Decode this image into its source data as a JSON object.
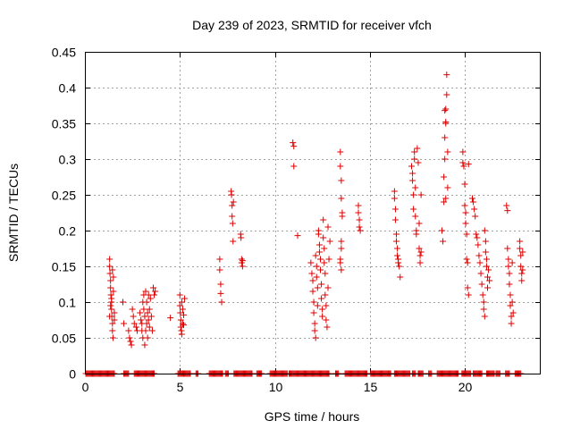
{
  "chart_data": {
    "type": "scatter",
    "title": "Day 239 of 2023, SRMTID for receiver vfch",
    "xlabel": "GPS time / hours",
    "ylabel": "SRMTID / TECUs",
    "xlim": [
      0,
      24
    ],
    "ylim": [
      0,
      0.45
    ],
    "xticks": [
      0,
      5,
      10,
      15,
      20
    ],
    "yticks": [
      0,
      0.05,
      0.1,
      0.15,
      0.2,
      0.25,
      0.3,
      0.35,
      0.4,
      0.45
    ],
    "xtick_labels": [
      "0",
      "5",
      "10",
      "15",
      "20"
    ],
    "ytick_labels": [
      "0",
      "0.05",
      "0.1",
      "0.15",
      "0.2",
      "0.25",
      "0.3",
      "0.35",
      "0.4",
      "0.45"
    ],
    "grid": true,
    "marker": "+",
    "color": "#dd0000",
    "series": [
      {
        "name": "SRMTID",
        "points": [
          [
            1.3,
            0.16
          ],
          [
            1.3,
            0.15
          ],
          [
            1.32,
            0.14
          ],
          [
            1.35,
            0.13
          ],
          [
            1.35,
            0.12
          ],
          [
            1.37,
            0.11
          ],
          [
            1.4,
            0.1
          ],
          [
            1.4,
            0.09
          ],
          [
            1.42,
            0.08
          ],
          [
            1.45,
            0.07
          ],
          [
            1.45,
            0.06
          ],
          [
            1.48,
            0.05
          ],
          [
            1.3,
            0.08
          ],
          [
            1.35,
            0.095
          ],
          [
            1.4,
            0.105
          ],
          [
            1.45,
            0.145
          ],
          [
            1.5,
            0.135
          ],
          [
            1.5,
            0.115
          ],
          [
            1.55,
            0.085
          ],
          [
            1.55,
            0.075
          ],
          [
            2.0,
            0.1
          ],
          [
            2.05,
            0.07
          ],
          [
            2.3,
            0.06
          ],
          [
            2.35,
            0.05
          ],
          [
            2.4,
            0.045
          ],
          [
            2.45,
            0.04
          ],
          [
            2.5,
            0.09
          ],
          [
            2.55,
            0.08
          ],
          [
            2.6,
            0.07
          ],
          [
            2.7,
            0.065
          ],
          [
            2.75,
            0.06
          ],
          [
            2.9,
            0.085
          ],
          [
            2.95,
            0.075
          ],
          [
            3.0,
            0.07
          ],
          [
            3.0,
            0.06
          ],
          [
            3.05,
            0.05
          ],
          [
            3.05,
            0.1
          ],
          [
            3.1,
            0.09
          ],
          [
            3.1,
            0.11
          ],
          [
            3.15,
            0.08
          ],
          [
            3.15,
            0.04
          ],
          [
            3.2,
            0.115
          ],
          [
            3.2,
            0.06
          ],
          [
            3.25,
            0.07
          ],
          [
            3.25,
            0.1
          ],
          [
            3.3,
            0.085
          ],
          [
            3.3,
            0.05
          ],
          [
            3.35,
            0.11
          ],
          [
            3.35,
            0.075
          ],
          [
            3.4,
            0.09
          ],
          [
            3.4,
            0.065
          ],
          [
            3.45,
            0.105
          ],
          [
            3.5,
            0.08
          ],
          [
            3.55,
            0.06
          ],
          [
            3.6,
            0.12
          ],
          [
            3.65,
            0.11
          ],
          [
            3.7,
            0.115
          ],
          [
            4.5,
            0.078
          ],
          [
            5.0,
            0.11
          ],
          [
            5.0,
            0.095
          ],
          [
            5.02,
            0.085
          ],
          [
            5.05,
            0.075
          ],
          [
            5.05,
            0.065
          ],
          [
            5.08,
            0.06
          ],
          [
            5.1,
            0.055
          ],
          [
            5.1,
            0.1
          ],
          [
            5.15,
            0.09
          ],
          [
            5.15,
            0.07
          ],
          [
            5.2,
            0.082
          ],
          [
            5.2,
            0.068
          ],
          [
            5.25,
            0.105
          ],
          [
            7.1,
            0.16
          ],
          [
            7.1,
            0.145
          ],
          [
            7.15,
            0.125
          ],
          [
            7.15,
            0.112
          ],
          [
            7.2,
            0.1
          ],
          [
            7.7,
            0.255
          ],
          [
            7.72,
            0.25
          ],
          [
            7.75,
            0.235
          ],
          [
            7.75,
            0.22
          ],
          [
            7.78,
            0.21
          ],
          [
            7.8,
            0.185
          ],
          [
            7.82,
            0.24
          ],
          [
            8.2,
            0.195
          ],
          [
            8.22,
            0.19
          ],
          [
            8.25,
            0.16
          ],
          [
            8.25,
            0.155
          ],
          [
            8.3,
            0.15
          ],
          [
            8.3,
            0.158
          ],
          [
            10.95,
            0.323
          ],
          [
            11.0,
            0.318
          ],
          [
            11.0,
            0.29
          ],
          [
            11.2,
            0.193
          ],
          [
            11.9,
            0.155
          ],
          [
            11.95,
            0.14
          ],
          [
            12.0,
            0.13
          ],
          [
            12.0,
            0.115
          ],
          [
            12.05,
            0.1
          ],
          [
            12.05,
            0.085
          ],
          [
            12.1,
            0.07
          ],
          [
            12.1,
            0.06
          ],
          [
            12.15,
            0.05
          ],
          [
            12.15,
            0.165
          ],
          [
            12.2,
            0.15
          ],
          [
            12.2,
            0.135
          ],
          [
            12.25,
            0.12
          ],
          [
            12.25,
            0.095
          ],
          [
            12.3,
            0.2
          ],
          [
            12.3,
            0.195
          ],
          [
            12.35,
            0.18
          ],
          [
            12.35,
            0.17
          ],
          [
            12.4,
            0.16
          ],
          [
            12.4,
            0.145
          ],
          [
            12.45,
            0.125
          ],
          [
            12.45,
            0.105
          ],
          [
            12.5,
            0.09
          ],
          [
            12.5,
            0.08
          ],
          [
            12.55,
            0.215
          ],
          [
            12.55,
            0.19
          ],
          [
            12.6,
            0.175
          ],
          [
            12.6,
            0.155
          ],
          [
            12.65,
            0.14
          ],
          [
            12.65,
            0.11
          ],
          [
            12.7,
            0.095
          ],
          [
            12.7,
            0.075
          ],
          [
            12.75,
            0.065
          ],
          [
            12.8,
            0.205
          ],
          [
            12.8,
            0.12
          ],
          [
            12.85,
            0.16
          ],
          [
            12.9,
            0.185
          ],
          [
            13.45,
            0.31
          ],
          [
            13.45,
            0.29
          ],
          [
            13.5,
            0.27
          ],
          [
            13.5,
            0.245
          ],
          [
            13.55,
            0.225
          ],
          [
            13.55,
            0.22
          ],
          [
            13.5,
            0.185
          ],
          [
            13.5,
            0.175
          ],
          [
            13.45,
            0.16
          ],
          [
            13.45,
            0.155
          ],
          [
            13.5,
            0.145
          ],
          [
            14.4,
            0.235
          ],
          [
            14.4,
            0.225
          ],
          [
            14.45,
            0.215
          ],
          [
            14.45,
            0.205
          ],
          [
            14.5,
            0.2
          ],
          [
            16.3,
            0.255
          ],
          [
            16.3,
            0.245
          ],
          [
            16.35,
            0.23
          ],
          [
            16.35,
            0.215
          ],
          [
            16.4,
            0.195
          ],
          [
            16.4,
            0.185
          ],
          [
            16.45,
            0.175
          ],
          [
            16.45,
            0.165
          ],
          [
            16.5,
            0.16
          ],
          [
            16.5,
            0.155
          ],
          [
            16.55,
            0.15
          ],
          [
            16.6,
            0.135
          ],
          [
            17.2,
            0.29
          ],
          [
            17.25,
            0.28
          ],
          [
            17.25,
            0.27
          ],
          [
            17.3,
            0.25
          ],
          [
            17.3,
            0.23
          ],
          [
            17.35,
            0.31
          ],
          [
            17.35,
            0.3
          ],
          [
            17.4,
            0.26
          ],
          [
            17.4,
            0.22
          ],
          [
            17.45,
            0.2
          ],
          [
            17.45,
            0.195
          ],
          [
            17.5,
            0.315
          ],
          [
            17.55,
            0.295
          ],
          [
            17.6,
            0.21
          ],
          [
            17.6,
            0.175
          ],
          [
            17.65,
            0.165
          ],
          [
            17.65,
            0.155
          ],
          [
            17.7,
            0.25
          ],
          [
            17.7,
            0.17
          ],
          [
            18.8,
            0.2
          ],
          [
            18.85,
            0.185
          ],
          [
            18.9,
            0.24
          ],
          [
            18.9,
            0.275
          ],
          [
            18.95,
            0.3
          ],
          [
            18.95,
            0.33
          ],
          [
            19.0,
            0.35
          ],
          [
            19.0,
            0.37
          ],
          [
            19.05,
            0.39
          ],
          [
            19.05,
            0.418
          ],
          [
            19.0,
            0.352
          ],
          [
            18.95,
            0.368
          ],
          [
            19.1,
            0.31
          ],
          [
            19.1,
            0.26
          ],
          [
            19.0,
            0.245
          ],
          [
            19.9,
            0.31
          ],
          [
            19.9,
            0.295
          ],
          [
            19.95,
            0.29
          ],
          [
            20.0,
            0.265
          ],
          [
            20.0,
            0.235
          ],
          [
            20.05,
            0.225
          ],
          [
            20.05,
            0.21
          ],
          [
            20.1,
            0.195
          ],
          [
            20.1,
            0.16
          ],
          [
            20.15,
            0.155
          ],
          [
            20.15,
            0.12
          ],
          [
            20.2,
            0.11
          ],
          [
            20.2,
            0.293
          ],
          [
            20.4,
            0.245
          ],
          [
            20.45,
            0.24
          ],
          [
            20.5,
            0.23
          ],
          [
            20.55,
            0.22
          ],
          [
            20.6,
            0.195
          ],
          [
            20.65,
            0.19
          ],
          [
            20.7,
            0.18
          ],
          [
            20.75,
            0.165
          ],
          [
            20.8,
            0.155
          ],
          [
            20.85,
            0.14
          ],
          [
            20.9,
            0.125
          ],
          [
            20.95,
            0.11
          ],
          [
            21.0,
            0.1
          ],
          [
            21.0,
            0.09
          ],
          [
            21.05,
            0.08
          ],
          [
            21.05,
            0.2
          ],
          [
            21.1,
            0.185
          ],
          [
            21.1,
            0.17
          ],
          [
            21.15,
            0.16
          ],
          [
            21.15,
            0.15
          ],
          [
            21.2,
            0.135
          ],
          [
            21.2,
            0.12
          ],
          [
            21.25,
            0.145
          ],
          [
            21.3,
            0.13
          ],
          [
            22.2,
            0.235
          ],
          [
            22.25,
            0.228
          ],
          [
            22.25,
            0.175
          ],
          [
            22.3,
            0.16
          ],
          [
            22.3,
            0.15
          ],
          [
            22.35,
            0.14
          ],
          [
            22.35,
            0.125
          ],
          [
            22.4,
            0.11
          ],
          [
            22.4,
            0.095
          ],
          [
            22.45,
            0.08
          ],
          [
            22.45,
            0.07
          ],
          [
            22.5,
            0.1
          ],
          [
            22.55,
            0.085
          ],
          [
            22.5,
            0.155
          ],
          [
            22.9,
            0.185
          ],
          [
            22.9,
            0.175
          ],
          [
            22.95,
            0.165
          ],
          [
            22.95,
            0.15
          ],
          [
            23.0,
            0.14
          ],
          [
            23.0,
            0.13
          ],
          [
            23.05,
            0.17
          ],
          [
            23.05,
            0.145
          ]
        ]
      }
    ],
    "zero_intervals": [
      [
        0.05,
        1.55
      ],
      [
        2.05,
        2.3
      ],
      [
        2.6,
        3.65
      ],
      [
        4.9,
        5.55
      ],
      [
        5.85,
        5.95
      ],
      [
        6.55,
        7.25
      ],
      [
        7.4,
        7.55
      ],
      [
        7.85,
        8.8
      ],
      [
        9.05,
        9.3
      ],
      [
        9.75,
        10.65
      ],
      [
        10.75,
        12.85
      ],
      [
        13.2,
        13.35
      ],
      [
        13.7,
        14.85
      ],
      [
        15.05,
        16.1
      ],
      [
        16.3,
        17.1
      ],
      [
        17.25,
        17.4
      ],
      [
        17.55,
        17.8
      ],
      [
        18.1,
        18.25
      ],
      [
        18.55,
        19.65
      ],
      [
        19.85,
        20.3
      ],
      [
        20.45,
        20.9
      ],
      [
        21.15,
        21.55
      ],
      [
        21.65,
        21.85
      ],
      [
        22.15,
        22.35
      ],
      [
        22.65,
        22.95
      ]
    ]
  }
}
